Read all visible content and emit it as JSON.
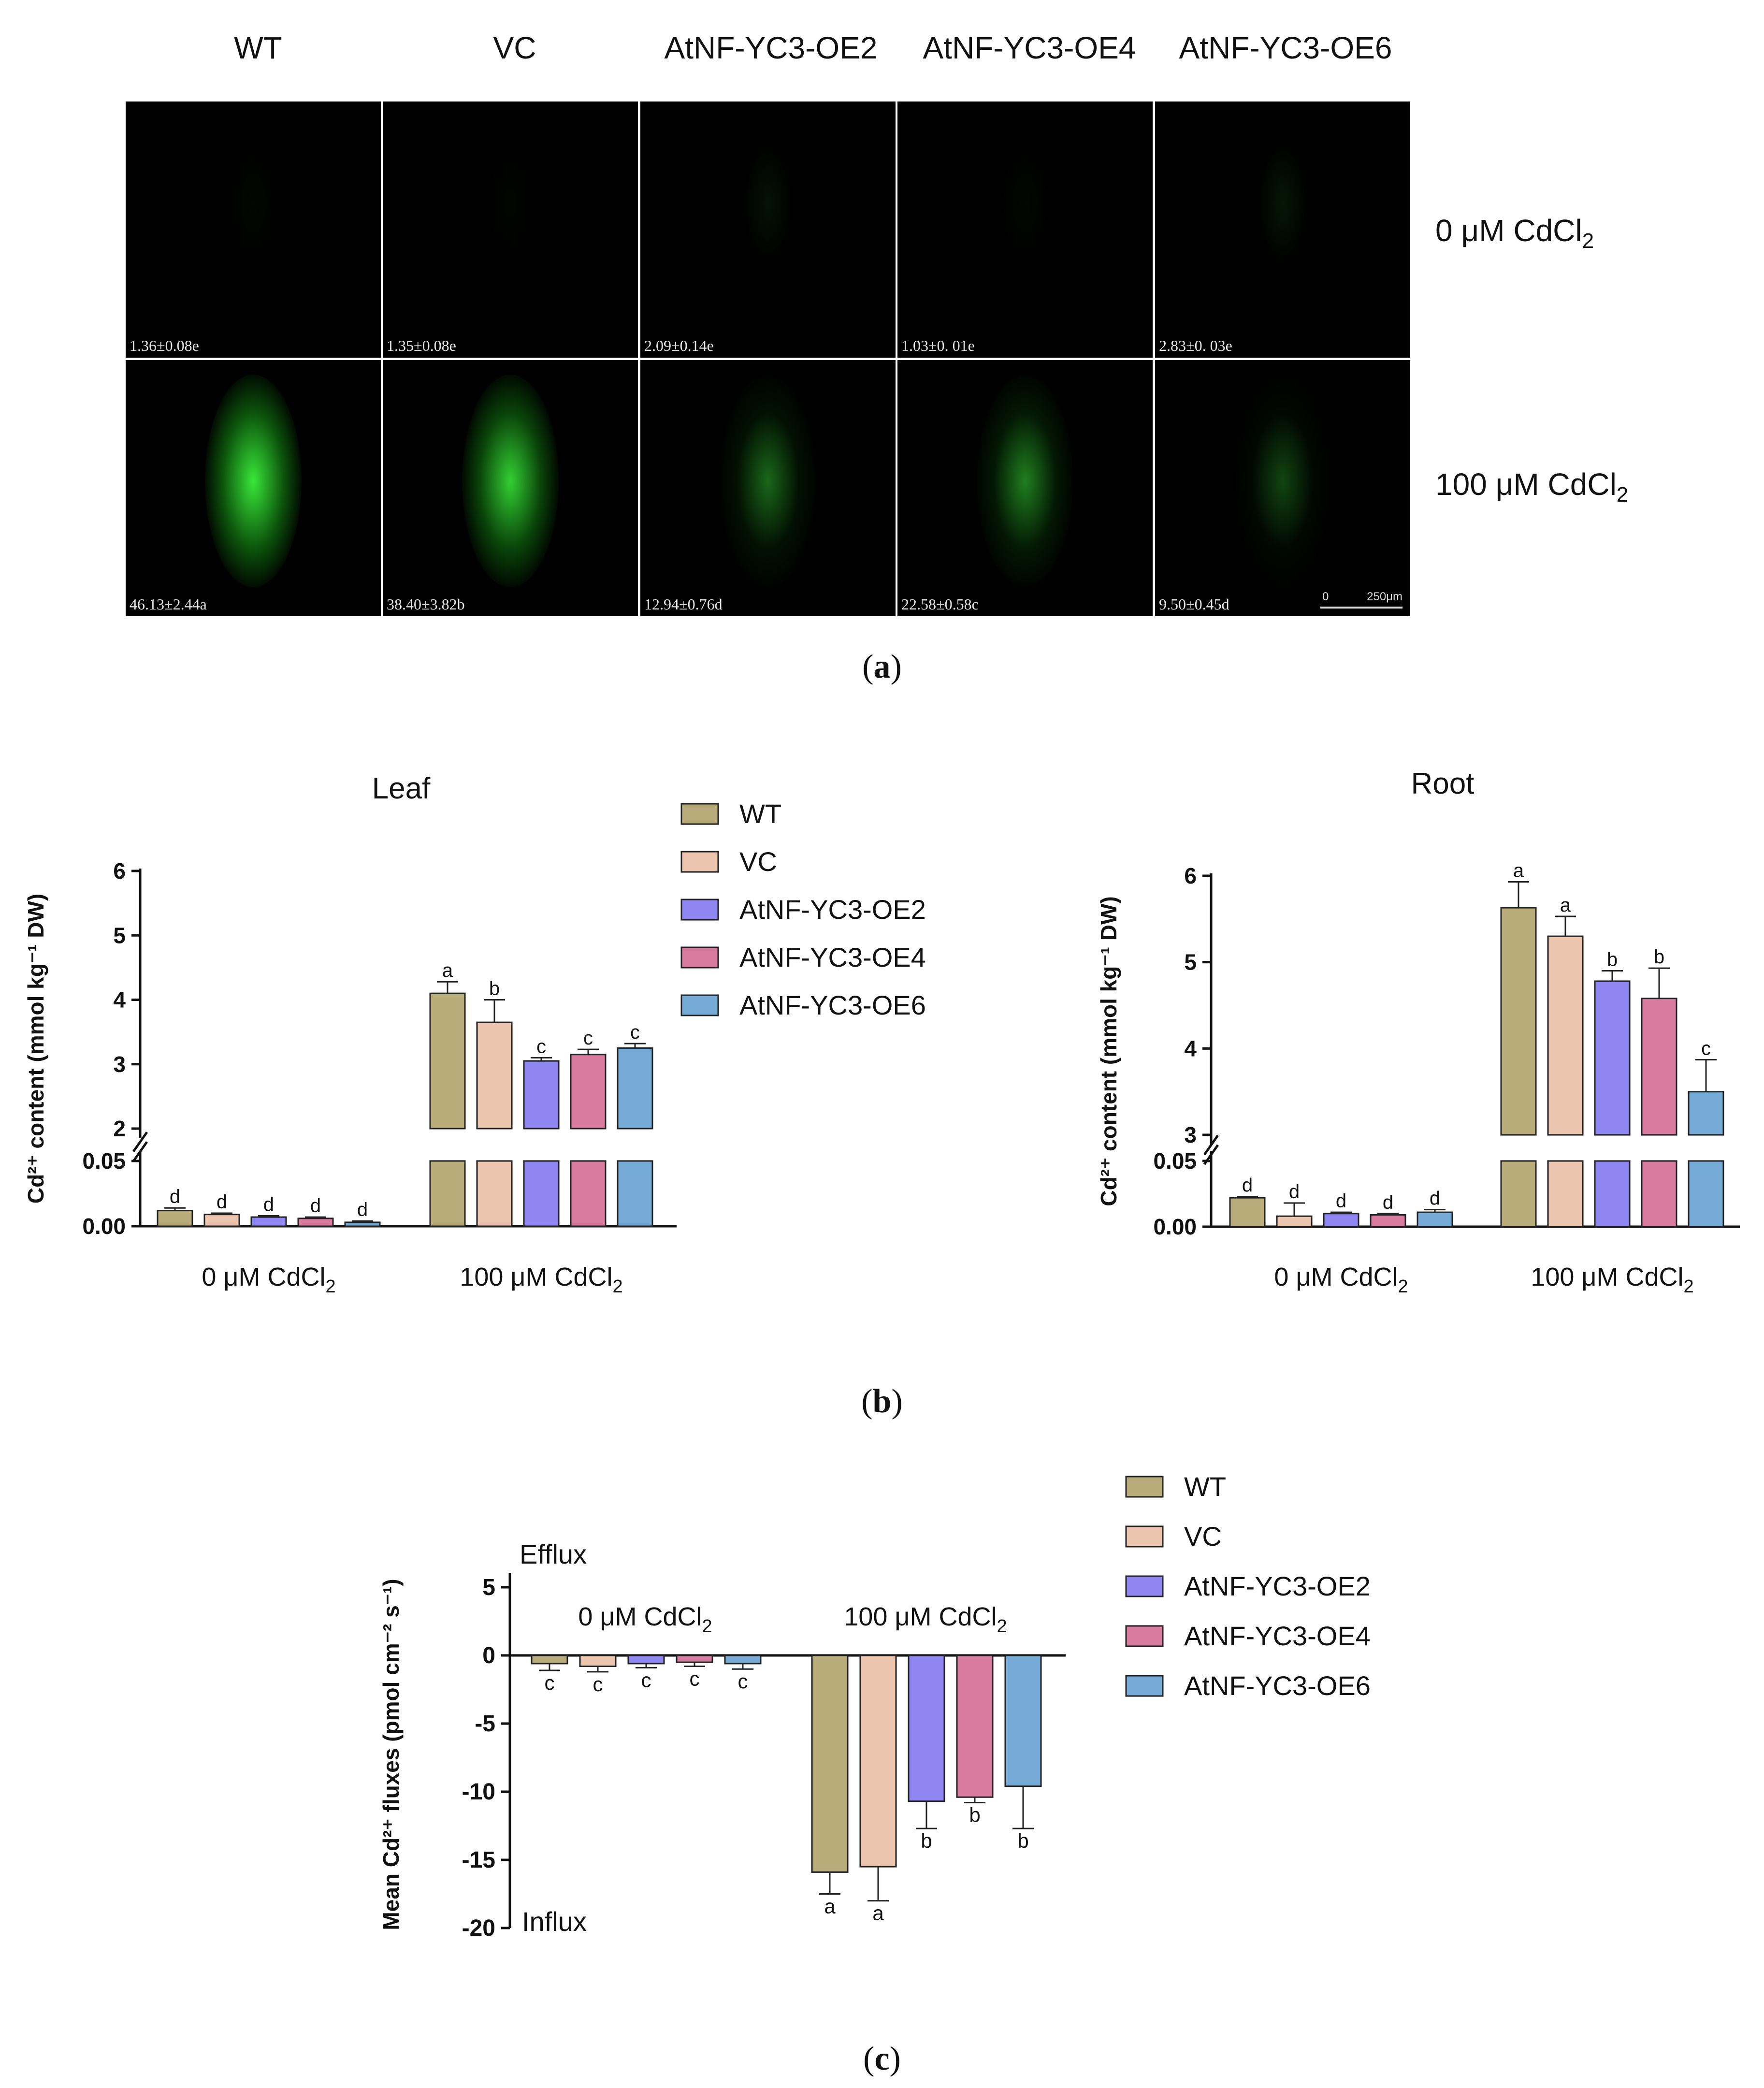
{
  "panel_a": {
    "column_labels": [
      "WT",
      "VC",
      "AtNF-YC3-OE2",
      "AtNF-YC3-OE4",
      "AtNF-YC3-OE6"
    ],
    "row_labels": [
      {
        "main": "0 μM CdCl",
        "sub": "2"
      },
      {
        "main": "100 μM CdCl",
        "sub": "2"
      }
    ],
    "fluorescence_values": [
      [
        "1.36±0.08e",
        "1.35±0.08e",
        "2.09±0.14e",
        "1.03±0. 01e",
        "2.83±0. 03e"
      ],
      [
        "46.13±2.44a",
        "38.40±3.82b",
        "12.94±0.76d",
        "22.58±0.58c",
        "9.50±0.45d"
      ]
    ],
    "scale_bar": {
      "zero": "0",
      "length": "250μm"
    },
    "glow_color": "#39e639",
    "letter": "a"
  },
  "legend": {
    "entries": [
      "WT",
      "VC",
      "AtNF-YC3-OE2",
      "AtNF-YC3-OE4",
      "AtNF-YC3-OE6"
    ],
    "colors": [
      "#b8ad7a",
      "#ebc5ae",
      "#8f86f2",
      "#d97b9e",
      "#75a9d6"
    ]
  },
  "panel_b": {
    "letter": "b",
    "ylabel": "Cd²⁺ content (mmol kg⁻¹ DW)"
  },
  "panel_c": {
    "letter": "c",
    "ylabel": "Mean Cd²⁺ fluxes (pmol cm⁻² s⁻¹)",
    "efflux_label": "Efflux",
    "influx_label": "Influx"
  },
  "chart_data": [
    {
      "type": "bar",
      "title": "Leaf",
      "ylabel": "Cd²⁺ content (mmol kg⁻¹ DW)",
      "categories": [
        "0 μM CdCl2",
        "100 μM CdCl2"
      ],
      "axis_break": {
        "lower": [
          0,
          0.05
        ],
        "upper": [
          2,
          6
        ]
      },
      "lower_ticks": [
        "0.00",
        "0.05"
      ],
      "upper_ticks": [
        "2",
        "3",
        "4",
        "5",
        "6"
      ],
      "series": [
        {
          "name": "WT",
          "values": [
            0.012,
            4.1
          ],
          "errors": [
            0.002,
            0.18
          ],
          "letters": [
            "d",
            "a"
          ]
        },
        {
          "name": "VC",
          "values": [
            0.009,
            3.65
          ],
          "errors": [
            0.001,
            0.35
          ],
          "letters": [
            "d",
            "b"
          ]
        },
        {
          "name": "AtNF-YC3-OE2",
          "values": [
            0.007,
            3.05
          ],
          "errors": [
            0.001,
            0.05
          ],
          "letters": [
            "d",
            "c"
          ]
        },
        {
          "name": "AtNF-YC3-OE4",
          "values": [
            0.006,
            3.15
          ],
          "errors": [
            0.001,
            0.08
          ],
          "letters": [
            "d",
            "c"
          ]
        },
        {
          "name": "AtNF-YC3-OE6",
          "values": [
            0.003,
            3.25
          ],
          "errors": [
            0.001,
            0.07
          ],
          "letters": [
            "d",
            "c"
          ]
        }
      ]
    },
    {
      "type": "bar",
      "title": "Root",
      "ylabel": "Cd²⁺ content (mmol kg⁻¹ DW)",
      "categories": [
        "0 μM CdCl2",
        "100 μM CdCl2"
      ],
      "axis_break": {
        "lower": [
          0,
          0.05
        ],
        "upper": [
          3,
          6
        ]
      },
      "lower_ticks": [
        "0.00",
        "0.05"
      ],
      "upper_ticks": [
        "3",
        "4",
        "5",
        "6"
      ],
      "series": [
        {
          "name": "WT",
          "values": [
            0.022,
            5.63
          ],
          "errors": [
            0.001,
            0.3
          ],
          "letters": [
            "d",
            "a"
          ]
        },
        {
          "name": "VC",
          "values": [
            0.008,
            5.3
          ],
          "errors": [
            0.01,
            0.23
          ],
          "letters": [
            "d",
            "a"
          ]
        },
        {
          "name": "AtNF-YC3-OE2",
          "values": [
            0.01,
            4.78
          ],
          "errors": [
            0.001,
            0.12
          ],
          "letters": [
            "d",
            "b"
          ]
        },
        {
          "name": "AtNF-YC3-OE4",
          "values": [
            0.009,
            4.58
          ],
          "errors": [
            0.001,
            0.35
          ],
          "letters": [
            "d",
            "b"
          ]
        },
        {
          "name": "AtNF-YC3-OE6",
          "values": [
            0.011,
            3.5
          ],
          "errors": [
            0.002,
            0.37
          ],
          "letters": [
            "d",
            "c"
          ]
        }
      ]
    },
    {
      "type": "bar",
      "ylabel": "Mean Cd²⁺ fluxes (pmol cm⁻² s⁻¹)",
      "categories": [
        "0 μM CdCl2",
        "100 μM CdCl2"
      ],
      "ylim": [
        -20,
        5
      ],
      "yticks": [
        "5",
        "0",
        "-5",
        "-10",
        "-15",
        "-20"
      ],
      "series": [
        {
          "name": "WT",
          "values": [
            -0.6,
            -15.9
          ],
          "errors": [
            0.5,
            1.6
          ],
          "letters": [
            "c",
            "a"
          ]
        },
        {
          "name": "VC",
          "values": [
            -0.8,
            -15.5
          ],
          "errors": [
            0.4,
            2.5
          ],
          "letters": [
            "c",
            "a"
          ]
        },
        {
          "name": "AtNF-YC3-OE2",
          "values": [
            -0.6,
            -10.7
          ],
          "errors": [
            0.3,
            2.0
          ],
          "letters": [
            "c",
            "b"
          ]
        },
        {
          "name": "AtNF-YC3-OE4",
          "values": [
            -0.5,
            -10.4
          ],
          "errors": [
            0.3,
            0.4
          ],
          "letters": [
            "c",
            "b"
          ]
        },
        {
          "name": "AtNF-YC3-OE6",
          "values": [
            -0.6,
            -9.6
          ],
          "errors": [
            0.4,
            3.1
          ],
          "letters": [
            "c",
            "b"
          ]
        }
      ]
    }
  ]
}
